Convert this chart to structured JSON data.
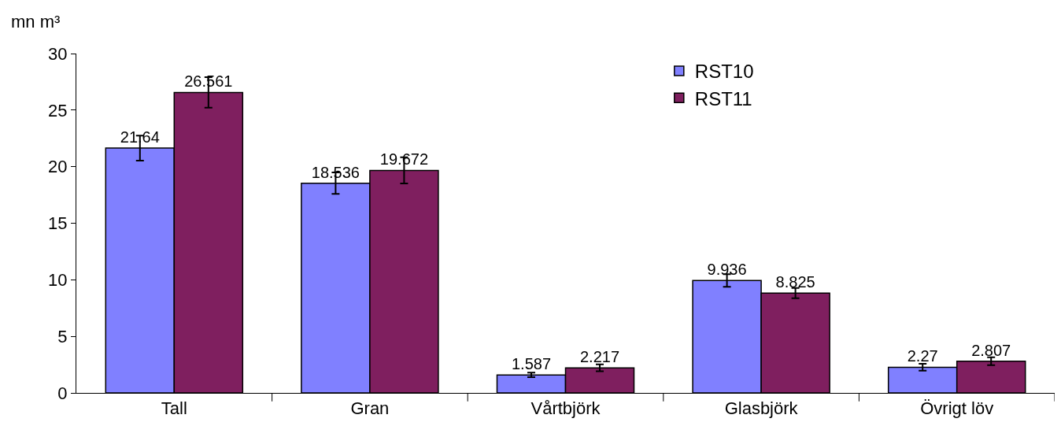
{
  "chart_data": {
    "type": "bar",
    "ylabel": "mn m³",
    "categories": [
      "Tall",
      "Gran",
      "Vårtbjörk",
      "Glasbjörk",
      "Övrigt löv"
    ],
    "series": [
      {
        "name": "RST10",
        "color": "#8080ff",
        "values": [
          21.64,
          18.536,
          1.587,
          9.936,
          2.27
        ],
        "errors": [
          1.1,
          0.95,
          0.2,
          0.55,
          0.3
        ]
      },
      {
        "name": "RST11",
        "color": "#7f1f5f",
        "values": [
          26.561,
          19.672,
          2.217,
          8.825,
          2.807
        ],
        "errors": [
          1.35,
          1.15,
          0.3,
          0.45,
          0.35
        ]
      }
    ],
    "ylim": [
      0,
      30
    ],
    "yticks": [
      0,
      5,
      10,
      15,
      20,
      25,
      30
    ],
    "grid": false,
    "legend": "top right",
    "data_labels": true
  }
}
